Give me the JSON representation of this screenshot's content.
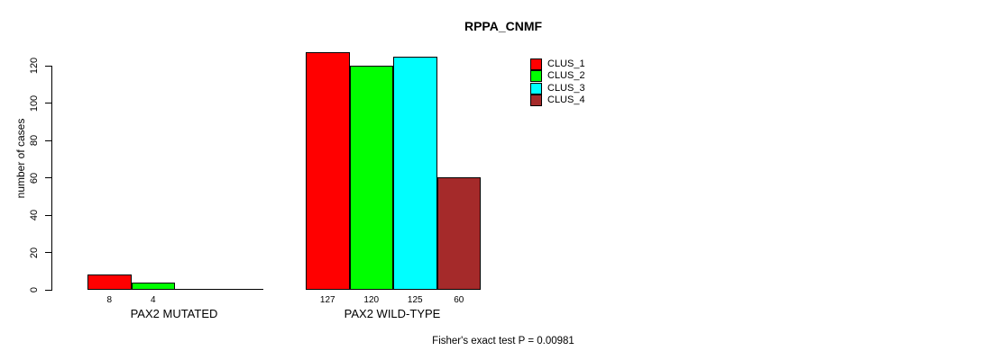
{
  "title": "RPPA_CNMF",
  "footer": "Fisher's exact test P = 0.00981",
  "chart_data": {
    "type": "bar",
    "title": "RPPA_CNMF",
    "xlabel": "",
    "ylabel": "number of cases",
    "ylim": [
      0,
      120
    ],
    "yticks": [
      0,
      20,
      40,
      60,
      80,
      100,
      120
    ],
    "categories": [
      "PAX2 MUTATED",
      "PAX2 WILD-TYPE"
    ],
    "series": [
      {
        "name": "CLUS_1",
        "color": "#ff0000",
        "values": [
          8,
          127
        ]
      },
      {
        "name": "CLUS_2",
        "color": "#00ff00",
        "values": [
          4,
          120
        ]
      },
      {
        "name": "CLUS_3",
        "color": "#00ffff",
        "values": [
          0,
          125
        ]
      },
      {
        "name": "CLUS_4",
        "color": "#a52a2a",
        "values": [
          0,
          60
        ]
      }
    ],
    "bar_value_labels": [
      [
        "8",
        "4",
        "",
        ""
      ],
      [
        "127",
        "120",
        "125",
        "60"
      ]
    ],
    "legend_position": "top-right",
    "grid": false,
    "annotation": "Fisher's exact test P = 0.00981"
  }
}
